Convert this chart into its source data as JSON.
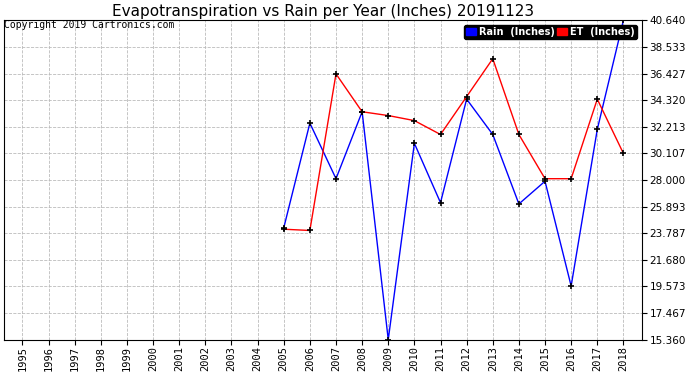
{
  "title": "Evapotranspiration vs Rain per Year (Inches) 20191123",
  "copyright": "Copyright 2019 Cartronics.com",
  "legend_rain": "Rain  (Inches)",
  "legend_et": "ET  (Inches)",
  "years": [
    1995,
    1996,
    1997,
    1998,
    1999,
    2000,
    2001,
    2002,
    2003,
    2004,
    2005,
    2006,
    2007,
    2008,
    2009,
    2010,
    2011,
    2012,
    2013,
    2014,
    2015,
    2016,
    2017,
    2018
  ],
  "rain": [
    null,
    null,
    null,
    null,
    null,
    null,
    null,
    null,
    null,
    null,
    24.2,
    32.5,
    28.1,
    33.4,
    15.36,
    30.9,
    26.2,
    34.4,
    31.6,
    26.1,
    27.9,
    19.6,
    32.0,
    40.64
  ],
  "et": [
    null,
    null,
    null,
    null,
    null,
    null,
    null,
    null,
    null,
    null,
    24.1,
    24.0,
    36.4,
    33.4,
    33.1,
    32.7,
    31.6,
    34.6,
    37.6,
    31.6,
    28.1,
    28.1,
    34.4,
    30.1
  ],
  "ylim": [
    15.36,
    40.64
  ],
  "yticks": [
    15.36,
    17.467,
    19.573,
    21.68,
    23.787,
    25.893,
    28.0,
    30.107,
    32.213,
    34.32,
    36.427,
    38.533,
    40.64
  ],
  "xlim_left": 1994.3,
  "xlim_right": 2018.7,
  "rain_color": "#0000FF",
  "et_color": "#FF0000",
  "background_color": "#FFFFFF",
  "grid_color": "#BBBBBB",
  "title_fontsize": 11,
  "copyright_fontsize": 7,
  "tick_fontsize": 7.5
}
